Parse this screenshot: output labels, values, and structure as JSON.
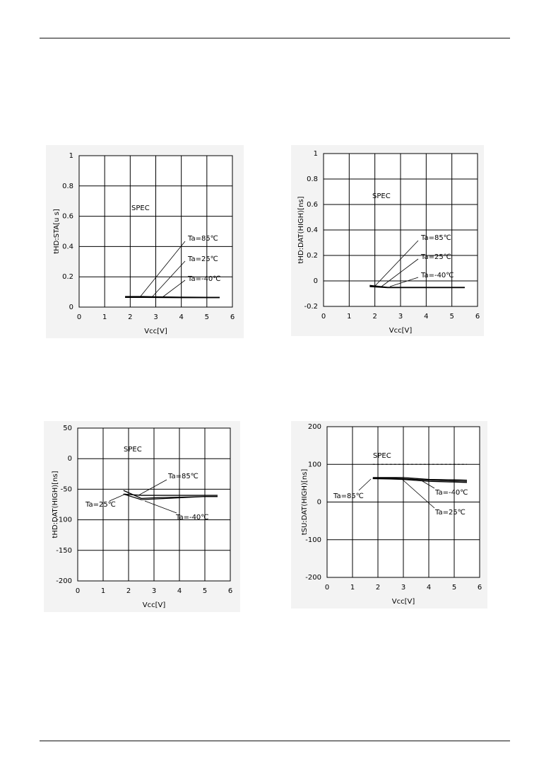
{
  "chart_data": [
    {
      "type": "line",
      "x_label": "Vcc[V]",
      "y_label": "tHD:STA[u s]",
      "spec_label": "SPEC",
      "x": [
        1.8,
        2.5,
        3,
        4,
        5,
        5.5
      ],
      "xlim": [
        0,
        6
      ],
      "xticks": [
        0,
        1,
        2,
        3,
        4,
        5,
        6
      ],
      "ylim": [
        0,
        1
      ],
      "yticks": [
        0,
        0.2,
        0.4,
        0.6,
        0.8,
        1
      ],
      "grid": true,
      "series": [
        {
          "name": "Ta=85℃",
          "color": "#000000",
          "values": [
            0.07,
            0.07,
            0.068,
            0.066,
            0.065,
            0.065
          ]
        },
        {
          "name": "Ta=25℃",
          "color": "#000000",
          "values": [
            0.066,
            0.066,
            0.065,
            0.064,
            0.063,
            0.063
          ]
        },
        {
          "name": "Ta=-40℃",
          "color": "#000000",
          "values": [
            0.064,
            0.064,
            0.063,
            0.062,
            0.062,
            0.062
          ]
        }
      ]
    },
    {
      "type": "line",
      "x_label": "Vcc[V]",
      "y_label": "tHD:DAT(HIGH)[ns]",
      "spec_label": "SPEC",
      "x": [
        1.8,
        2.5,
        3,
        4,
        5,
        5.5
      ],
      "xlim": [
        0,
        6
      ],
      "xticks": [
        0,
        1,
        2,
        3,
        4,
        5,
        6
      ],
      "ylim": [
        -0.2,
        1
      ],
      "yticks": [
        -0.2,
        0,
        0.2,
        0.4,
        0.6,
        0.8,
        1
      ],
      "grid": true,
      "series": [
        {
          "name": "Ta=85℃",
          "color": "#000000",
          "values": [
            -0.035,
            -0.05,
            -0.05,
            -0.05,
            -0.05,
            -0.05
          ]
        },
        {
          "name": "Ta=25℃",
          "color": "#000000",
          "values": [
            -0.04,
            -0.052,
            -0.052,
            -0.052,
            -0.052,
            -0.052
          ]
        },
        {
          "name": "Ta=-40℃",
          "color": "#000000",
          "values": [
            -0.045,
            -0.053,
            -0.053,
            -0.053,
            -0.053,
            -0.053
          ]
        }
      ]
    },
    {
      "type": "line",
      "x_label": "Vcc[V]",
      "y_label": "tHD:DAT(HIGH)[ns]",
      "spec_label": "SPEC",
      "x": [
        1.8,
        2.5,
        3,
        4,
        5,
        5.5
      ],
      "xlim": [
        0,
        6
      ],
      "xticks": [
        0,
        1,
        2,
        3,
        4,
        5,
        6
      ],
      "ylim": [
        -200,
        50
      ],
      "yticks": [
        -200,
        -150,
        -100,
        -50,
        0,
        50
      ],
      "grid": true,
      "series": [
        {
          "name": "Ta=85℃",
          "color": "#000000",
          "values": [
            -58,
            -60,
            -60,
            -60,
            -60,
            -60
          ]
        },
        {
          "name": "Ta=25℃",
          "color": "#000000",
          "values": [
            -52,
            -65,
            -64,
            -63,
            -62,
            -62
          ]
        },
        {
          "name": "Ta=-40℃",
          "color": "#000000",
          "values": [
            -58,
            -67,
            -66,
            -64,
            -62,
            -62
          ]
        }
      ]
    },
    {
      "type": "line",
      "x_label": "Vcc[V]",
      "y_label": "tSU:DAT(HIGH)[ns]",
      "spec_label": "SPEC",
      "spec_line": 100,
      "x": [
        1.8,
        2.5,
        3,
        4,
        5,
        5.5
      ],
      "xlim": [
        0,
        6
      ],
      "xticks": [
        0,
        1,
        2,
        3,
        4,
        5,
        6
      ],
      "ylim": [
        -200,
        200
      ],
      "yticks": [
        -200,
        -100,
        0,
        100,
        200
      ],
      "grid": true,
      "series": [
        {
          "name": "Ta=85℃",
          "color": "#000000",
          "values": [
            65,
            65,
            65,
            60,
            59,
            58
          ]
        },
        {
          "name": "Ta=25℃",
          "color": "#000000",
          "values": [
            62,
            61,
            60,
            55,
            53,
            52
          ]
        },
        {
          "name": "Ta=-40℃",
          "color": "#000000",
          "values": [
            63,
            63,
            62,
            58,
            56,
            55
          ]
        }
      ]
    }
  ]
}
